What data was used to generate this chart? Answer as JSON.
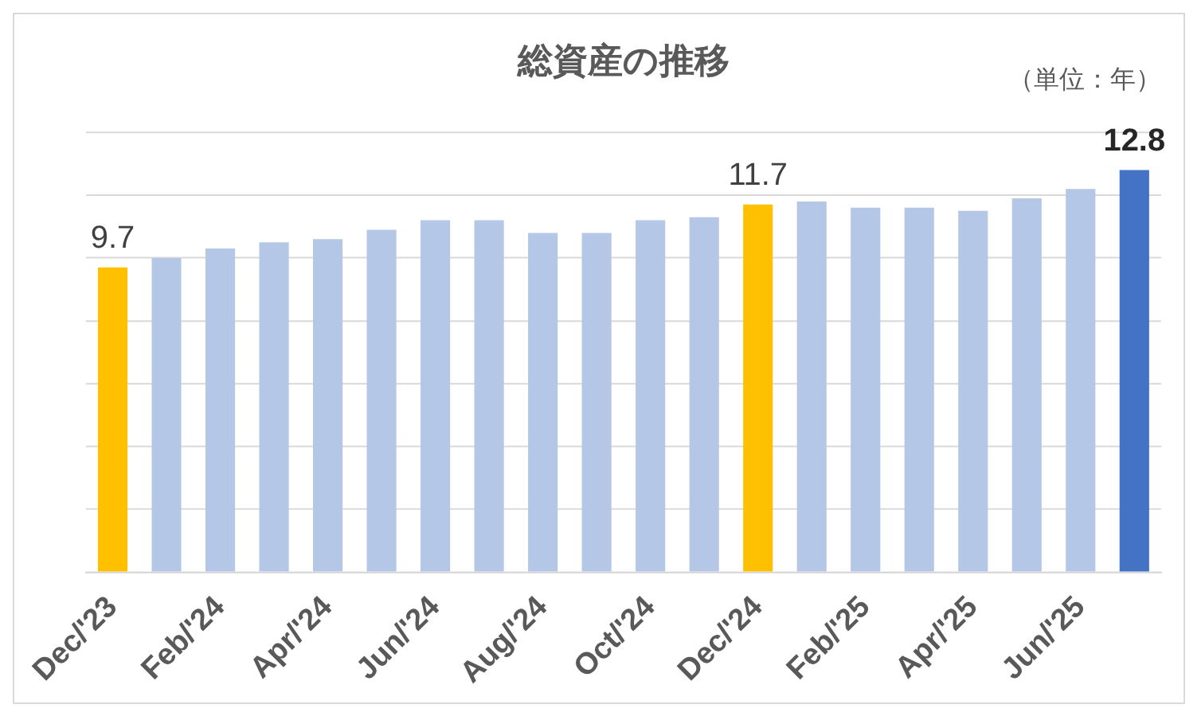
{
  "chart_data": {
    "type": "bar",
    "title": "総資産の推移",
    "annotations": [
      "（単位：年）"
    ],
    "categories": [
      "Dec/'23",
      null,
      "Feb/'24",
      null,
      "Apr/'24",
      null,
      "Jun/'24",
      null,
      "Aug/'24",
      null,
      "Oct/'24",
      null,
      "Dec/'24",
      null,
      "Feb/'25",
      null,
      "Apr/'25",
      null,
      "Jun/'25",
      null
    ],
    "values": [
      9.7,
      10.0,
      10.3,
      10.5,
      10.6,
      10.9,
      11.2,
      11.2,
      10.8,
      10.8,
      11.2,
      11.3,
      11.7,
      11.8,
      11.6,
      11.6,
      11.5,
      11.9,
      12.2,
      12.8
    ],
    "colors": [
      "#ffc000",
      "#b4c7e7",
      "#b4c7e7",
      "#b4c7e7",
      "#b4c7e7",
      "#b4c7e7",
      "#b4c7e7",
      "#b4c7e7",
      "#b4c7e7",
      "#b4c7e7",
      "#b4c7e7",
      "#b4c7e7",
      "#ffc000",
      "#b4c7e7",
      "#b4c7e7",
      "#b4c7e7",
      "#b4c7e7",
      "#b4c7e7",
      "#b4c7e7",
      "#4472c4"
    ],
    "ylim": [
      0,
      14
    ],
    "yticks": [
      {
        "value": 0,
        "label": null
      },
      {
        "value": 2,
        "label": null
      },
      {
        "value": 4,
        "label": null
      },
      {
        "value": 6,
        "label": null
      },
      {
        "value": 8,
        "label": null
      },
      {
        "value": 10,
        "label": null
      },
      {
        "value": 12,
        "label": null
      },
      {
        "value": 14,
        "label": null
      }
    ],
    "tick_labels": "x",
    "grid": "y",
    "value_labels": [
      "9.7",
      null,
      null,
      null,
      null,
      null,
      null,
      null,
      null,
      null,
      null,
      null,
      "11.7",
      null,
      null,
      null,
      null,
      null,
      null,
      "12.8"
    ]
  }
}
